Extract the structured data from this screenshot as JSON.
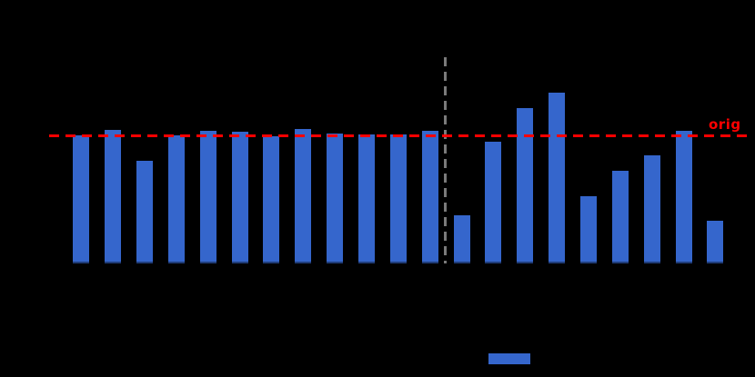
{
  "colors": {
    "background": "#000000",
    "bar": "#3566CC",
    "reference_line": "#FF0000",
    "separator_line": "#7A7A7A"
  },
  "annotation": {
    "label": "orig"
  },
  "chart_data": {
    "type": "bar",
    "title": "",
    "xlabel": "",
    "ylabel": "",
    "n_bars": 21,
    "values": [
      1.0,
      1.043,
      0.801,
      1.0,
      1.035,
      1.025,
      0.996,
      1.05,
      1.014,
      1.004,
      1.004,
      1.032,
      0.379,
      0.947,
      1.213,
      1.333,
      0.525,
      0.723,
      0.844,
      1.035,
      0.333
    ],
    "value_scale": "relative to reference line orig = 1.0",
    "ylim": [
      0,
      1.61
    ],
    "grid": false,
    "bar_color": "#3566CC",
    "reference_line": {
      "label": "orig",
      "value": 1.0,
      "orientation": "horizontal",
      "style": "dashed",
      "color": "#FF0000"
    },
    "separator_line": {
      "orientation": "vertical",
      "between_bar_indices": [
        11,
        12
      ],
      "style": "dashed",
      "color": "#7A7A7A"
    },
    "legend": {
      "position": "below-plot-center",
      "swatch_color": "#3566CC"
    }
  }
}
